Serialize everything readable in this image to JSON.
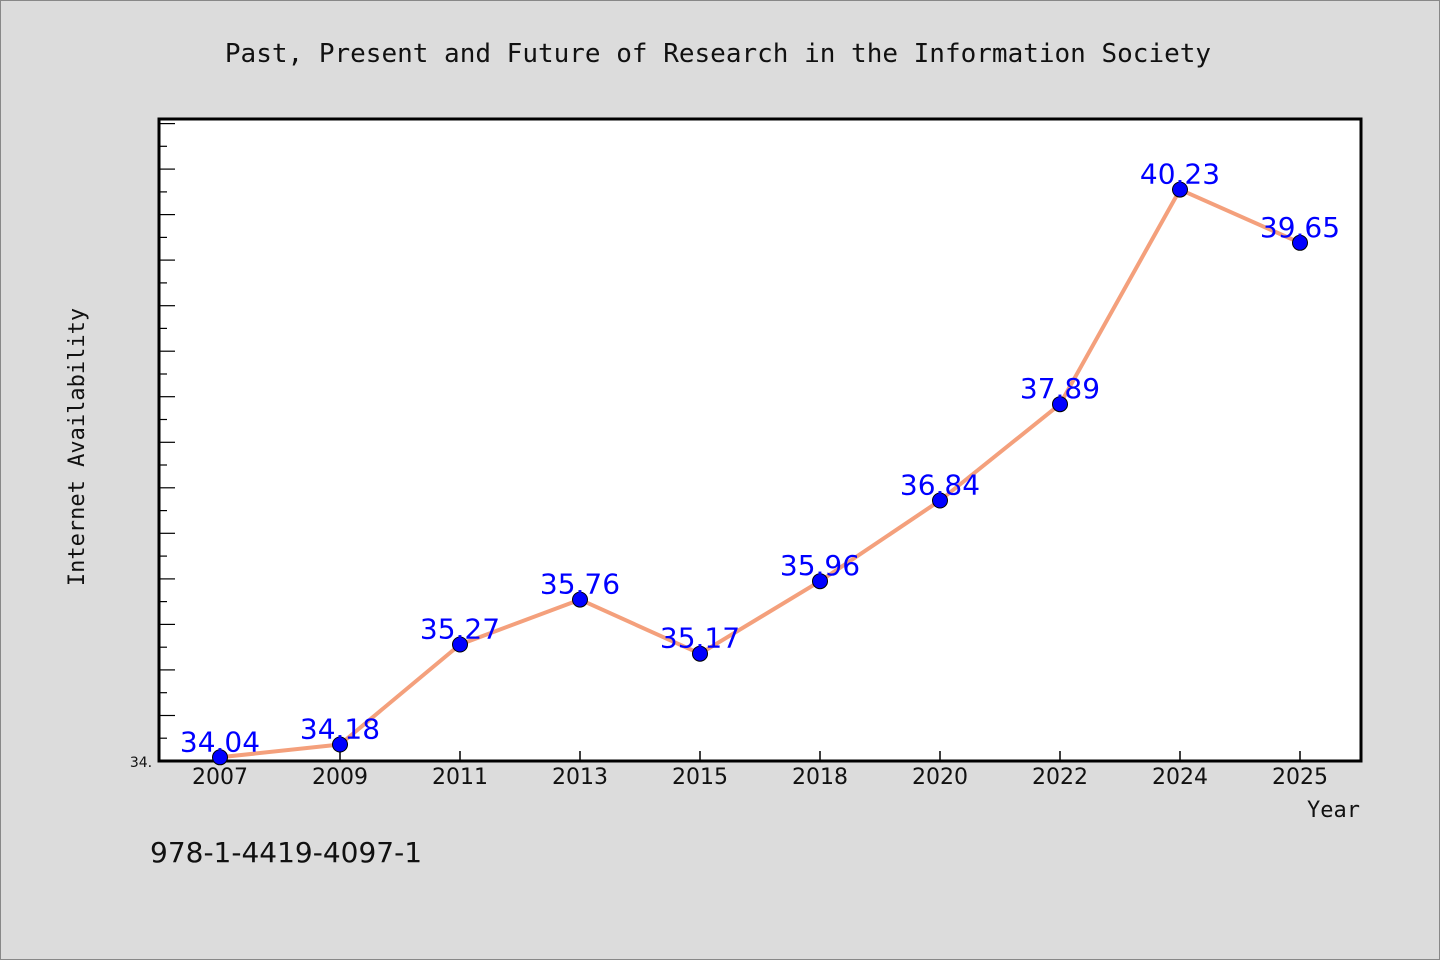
{
  "chart_data": {
    "type": "line",
    "title": "Past, Present and Future of Research in the Information Society",
    "xlabel": "Year",
    "ylabel": "Internet Availability",
    "categories": [
      "2007",
      "2009",
      "2011",
      "2013",
      "2015",
      "2018",
      "2020",
      "2022",
      "2024",
      "2025"
    ],
    "series": [
      {
        "values": [
          34.04,
          34.18,
          35.27,
          35.76,
          35.17,
          35.96,
          36.84,
          37.89,
          40.23,
          39.65
        ],
        "data_labels": [
          "34.04",
          "34.18",
          "35.27",
          "35.76",
          "35.17",
          "35.96",
          "36.84",
          "37.89",
          "40.23",
          "39.65"
        ]
      }
    ],
    "ylim": [
      34.0,
      41.0
    ],
    "y_tick_label": "34.",
    "grid": false,
    "line_color": "#f4a07c",
    "marker_color": "#0000ff",
    "label_color": "#0000ff"
  },
  "footer": {
    "isbn": "978-1-4419-4097-1"
  }
}
